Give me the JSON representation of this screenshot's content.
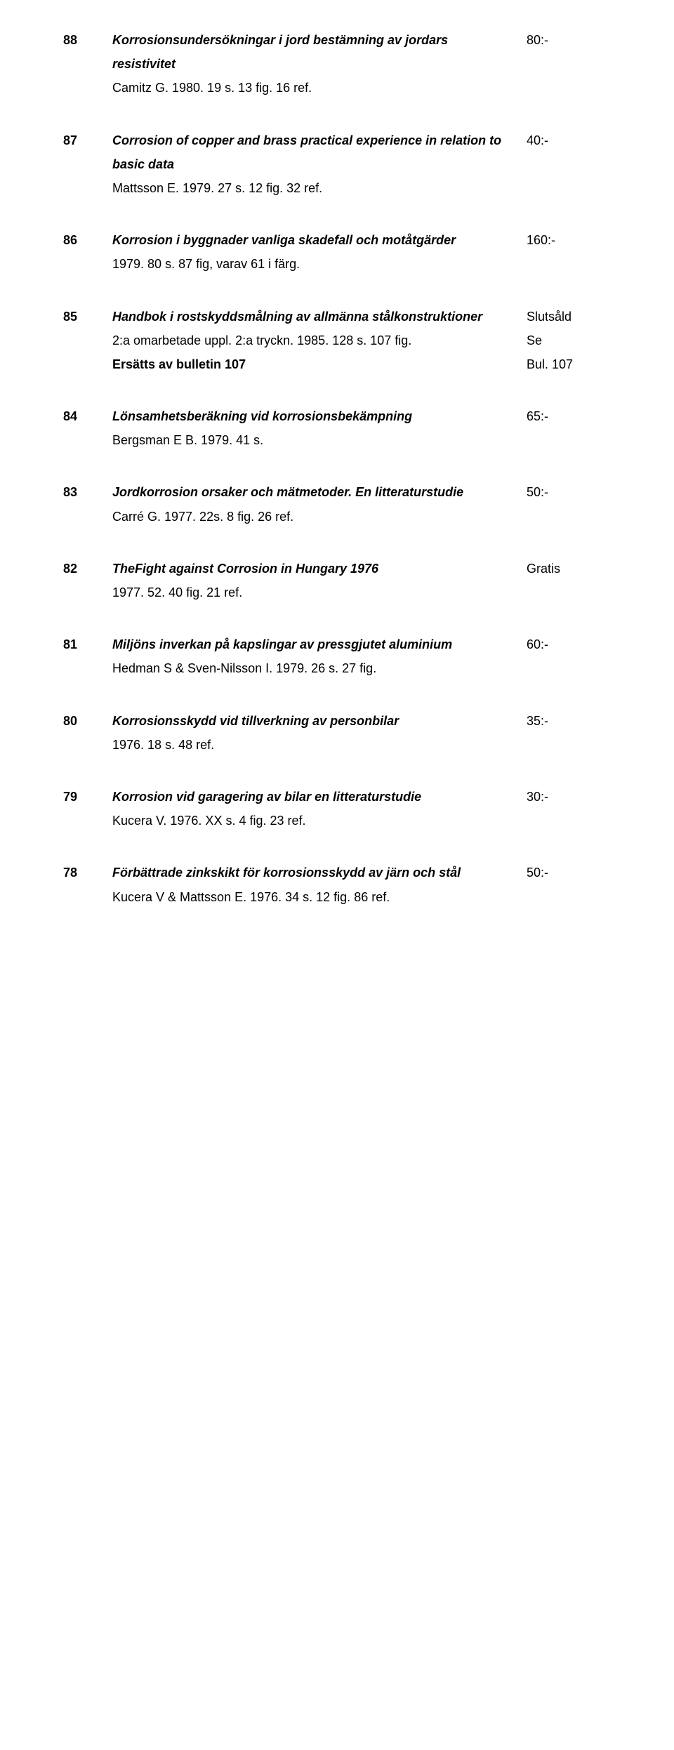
{
  "entries": [
    {
      "num": "88",
      "title": "Korrosionsundersökningar i jord bestämning av jordars resistivitet",
      "detail": "Camitz G. 1980. 19 s. 13 fig. 16 ref.",
      "price_lines": [
        "80:-"
      ]
    },
    {
      "num": "87",
      "title": "Corrosion of copper and brass practical experience in relation to basic data",
      "detail": "Mattsson E. 1979. 27 s. 12 fig. 32 ref.",
      "price_lines": [
        "40:-"
      ]
    },
    {
      "num": "86",
      "title": "Korrosion i byggnader vanliga skadefall och motåtgärder",
      "detail": "1979. 80 s. 87 fig, varav 61 i färg.",
      "price_lines": [
        "160:-"
      ]
    },
    {
      "num": "85",
      "title": "Handbok i rostskyddsmålning av allmänna stålkonstruktioner",
      "detail": "2:a omarbetade uppl. 2:a tryckn. 1985. 128 s. 107 fig.",
      "note": "Ersätts av bulletin 107",
      "price_lines": [
        "Slutsåld",
        "Se",
        "Bul. 107"
      ]
    },
    {
      "num": "84",
      "title": "Lönsamhetsberäkning vid korrosionsbekämpning",
      "detail": "Bergsman E B. 1979. 41 s.",
      "price_lines": [
        "65:-"
      ]
    },
    {
      "num": "83",
      "title": "Jordkorrosion orsaker och mätmetoder. En litteraturstudie",
      "detail": "Carré G. 1977. 22s. 8 fig. 26 ref.",
      "price_lines": [
        "50:-"
      ]
    },
    {
      "num": "82",
      "title": "TheFight against Corrosion in Hungary 1976",
      "detail": "1977. 52. 40 fig. 21 ref.",
      "price_lines": [
        "Gratis"
      ]
    },
    {
      "num": "81",
      "title": "Miljöns inverkan på kapslingar av pressgjutet aluminium",
      "detail": "Hedman S & Sven-Nilsson I. 1979. 26 s. 27 fig.",
      "price_lines": [
        "60:-"
      ]
    },
    {
      "num": "80",
      "title": "Korrosionsskydd vid tillverkning av personbilar",
      "detail": "1976. 18 s. 48 ref.",
      "price_lines": [
        "35:-"
      ]
    },
    {
      "num": "79",
      "title": "Korrosion vid garagering av bilar en litteraturstudie",
      "detail": "Kucera V. 1976. XX s. 4 fig. 23 ref.",
      "price_lines": [
        "30:-"
      ]
    },
    {
      "num": "78",
      "title": "Förbättring zinkskikt för korrosionsskydd av järn och stål",
      "title_override": "Förbättrade zinkskikt för korrosionsskydd av järn och stål",
      "detail": "Kucera V & Mattsson E. 1976. 34 s. 12 fig. 86 ref.",
      "price_lines": [
        "50:-"
      ]
    }
  ]
}
